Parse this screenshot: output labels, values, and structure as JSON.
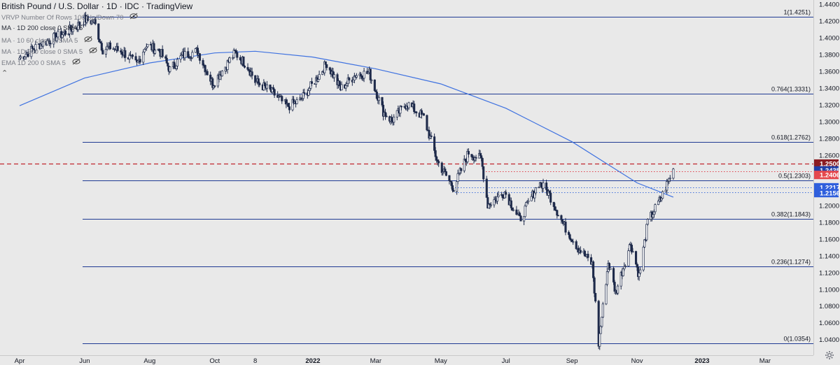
{
  "header": {
    "title": "British Pound / U.S. Dollar · 1D · IDC · TradingView",
    "indicators": [
      "VRVP Number Of Rows 100 Up/Down 70",
      "MA · 1D 200 close 0 SMA 5",
      "MA · 10 60 close 0 SMA 5",
      "MA · 1D 200 close 0 SMA 5",
      "EMA 1D 200 0 SMA 5"
    ],
    "collapse_symbol": "⌃"
  },
  "colors": {
    "background": "#e9e9e9",
    "candle": "#1e2a4a",
    "fib": "#1f3a93",
    "ma": "#3f72e0",
    "red_level": "#c1272d",
    "blue_level": "#3f6fdc",
    "axis_text": "#131722"
  },
  "chart_data": {
    "type": "candlestick",
    "title": "British Pound / U.S. Dollar · 1D · IDC · TradingView",
    "y_axis": {
      "range": [
        1.0214,
        1.4451
      ],
      "ticks": [
        1.44,
        1.42,
        1.4,
        1.38,
        1.36,
        1.34,
        1.32,
        1.3,
        1.28,
        1.26,
        1.2,
        1.18,
        1.16,
        1.14,
        1.12,
        1.1,
        1.08,
        1.06,
        1.04
      ],
      "tick_labels": [
        "1.4400",
        "1.4200",
        "1.4000",
        "1.3800",
        "1.3600",
        "1.3400",
        "1.3200",
        "1.3000",
        "1.2800",
        "1.2600",
        "1.2000",
        "1.1800",
        "1.1600",
        "1.1400",
        "1.1200",
        "1.1000",
        "1.0800",
        "1.0600",
        "1.0400"
      ]
    },
    "x_axis": {
      "labels": [
        {
          "label": "Apr",
          "date": "2021-04-01"
        },
        {
          "label": "Jun",
          "date": "2021-06-01"
        },
        {
          "label": "Aug",
          "date": "2021-08-01"
        },
        {
          "label": "Oct",
          "date": "2021-10-01"
        },
        {
          "label": "8",
          "date": "2021-11-08"
        },
        {
          "label": "2022",
          "date": "2022-01-01"
        },
        {
          "label": "Mar",
          "date": "2022-03-01"
        },
        {
          "label": "May",
          "date": "2022-05-01"
        },
        {
          "label": "Jul",
          "date": "2022-07-01"
        },
        {
          "label": "Sep",
          "date": "2022-09-01"
        },
        {
          "label": "Nov",
          "date": "2022-11-01"
        },
        {
          "label": "2023",
          "date": "2023-01-01"
        },
        {
          "label": "Mar",
          "date": "2023-03-01"
        }
      ]
    },
    "fib_levels": [
      {
        "label": "1(1.4251)",
        "value": 1.4251
      },
      {
        "label": "0.764(1.3331)",
        "value": 1.3331
      },
      {
        "label": "0.618(1.2762)",
        "value": 1.2762
      },
      {
        "label": "0.5(1.2303)",
        "value": 1.2303
      },
      {
        "label": "0.382(1.1843)",
        "value": 1.1843
      },
      {
        "label": "0.236(1.1274)",
        "value": 1.1274
      },
      {
        "label": "0(1.0354)",
        "value": 1.0354
      }
    ],
    "horizontal_levels": [
      {
        "value": 1.25,
        "label": "1.2500",
        "style": "dashed",
        "color": "#c1272d",
        "badge": "#8b1c22"
      },
      {
        "value": 1.2435,
        "label": "1.2435",
        "style": "none",
        "color": "#1f3fa8",
        "badge": "#1f3fa8"
      },
      {
        "value": 1.2406,
        "label": "1.2406",
        "style": "dotted",
        "color": "#e0404a",
        "badge": "#e5484d"
      },
      {
        "value": 1.2217,
        "label": "1.2217",
        "style": "dotted",
        "color": "#3f6fdc",
        "badge": "#2f5fdc"
      },
      {
        "value": 1.2156,
        "label": "1.2156",
        "style": "dotted",
        "color": "#3f6fdc",
        "badge": "#2f5fdc"
      }
    ],
    "series": [
      {
        "name": "price",
        "type": "candlestick",
        "points": [
          {
            "date": "2021-04-01",
            "close": 1.376
          },
          {
            "date": "2021-04-20",
            "close": 1.392
          },
          {
            "date": "2021-05-10",
            "close": 1.404
          },
          {
            "date": "2021-05-25",
            "close": 1.414
          },
          {
            "date": "2021-06-01",
            "close": 1.422
          },
          {
            "date": "2021-06-10",
            "close": 1.419
          },
          {
            "date": "2021-06-18",
            "close": 1.386
          },
          {
            "date": "2021-06-25",
            "close": 1.389
          },
          {
            "date": "2021-07-08",
            "close": 1.382
          },
          {
            "date": "2021-07-20",
            "close": 1.368
          },
          {
            "date": "2021-07-28",
            "close": 1.391
          },
          {
            "date": "2021-08-10",
            "close": 1.385
          },
          {
            "date": "2021-08-20",
            "close": 1.362
          },
          {
            "date": "2021-09-01",
            "close": 1.379
          },
          {
            "date": "2021-09-15",
            "close": 1.384
          },
          {
            "date": "2021-09-29",
            "close": 1.345
          },
          {
            "date": "2021-10-20",
            "close": 1.382
          },
          {
            "date": "2021-11-01",
            "close": 1.366
          },
          {
            "date": "2021-11-08",
            "close": 1.348
          },
          {
            "date": "2021-11-24",
            "close": 1.335
          },
          {
            "date": "2021-12-08",
            "close": 1.318
          },
          {
            "date": "2021-12-20",
            "close": 1.325
          },
          {
            "date": "2022-01-05",
            "close": 1.352
          },
          {
            "date": "2022-01-14",
            "close": 1.37
          },
          {
            "date": "2022-01-27",
            "close": 1.339
          },
          {
            "date": "2022-02-10",
            "close": 1.356
          },
          {
            "date": "2022-02-23",
            "close": 1.358
          },
          {
            "date": "2022-03-08",
            "close": 1.312
          },
          {
            "date": "2022-03-16",
            "close": 1.301
          },
          {
            "date": "2022-03-30",
            "close": 1.322
          },
          {
            "date": "2022-04-15",
            "close": 1.305
          },
          {
            "date": "2022-04-28",
            "close": 1.252
          },
          {
            "date": "2022-05-13",
            "close": 1.221
          },
          {
            "date": "2022-05-27",
            "close": 1.263
          },
          {
            "date": "2022-06-08",
            "close": 1.255
          },
          {
            "date": "2022-06-14",
            "close": 1.201
          },
          {
            "date": "2022-06-30",
            "close": 1.216
          },
          {
            "date": "2022-07-14",
            "close": 1.183
          },
          {
            "date": "2022-08-01",
            "close": 1.227
          },
          {
            "date": "2022-08-10",
            "close": 1.215
          },
          {
            "date": "2022-08-25",
            "close": 1.175
          },
          {
            "date": "2022-09-07",
            "close": 1.149
          },
          {
            "date": "2022-09-20",
            "close": 1.13
          },
          {
            "date": "2022-09-26",
            "close": 1.035
          },
          {
            "date": "2022-10-05",
            "close": 1.132
          },
          {
            "date": "2022-10-12",
            "close": 1.096
          },
          {
            "date": "2022-10-26",
            "close": 1.155
          },
          {
            "date": "2022-11-03",
            "close": 1.116
          },
          {
            "date": "2022-11-11",
            "close": 1.18
          },
          {
            "date": "2022-11-24",
            "close": 1.21
          },
          {
            "date": "2022-12-05",
            "close": 1.2435
          }
        ]
      },
      {
        "name": "MA 1D 200",
        "type": "line",
        "points": [
          {
            "date": "2021-04-01",
            "value": 1.319
          },
          {
            "date": "2021-06-01",
            "value": 1.352
          },
          {
            "date": "2021-08-01",
            "value": 1.37
          },
          {
            "date": "2021-10-01",
            "value": 1.382
          },
          {
            "date": "2021-11-08",
            "value": 1.384
          },
          {
            "date": "2022-01-01",
            "value": 1.377
          },
          {
            "date": "2022-03-01",
            "value": 1.363
          },
          {
            "date": "2022-05-01",
            "value": 1.345
          },
          {
            "date": "2022-07-01",
            "value": 1.316
          },
          {
            "date": "2022-09-01",
            "value": 1.276
          },
          {
            "date": "2022-11-01",
            "value": 1.227
          },
          {
            "date": "2022-12-05",
            "value": 1.21
          }
        ]
      }
    ]
  }
}
